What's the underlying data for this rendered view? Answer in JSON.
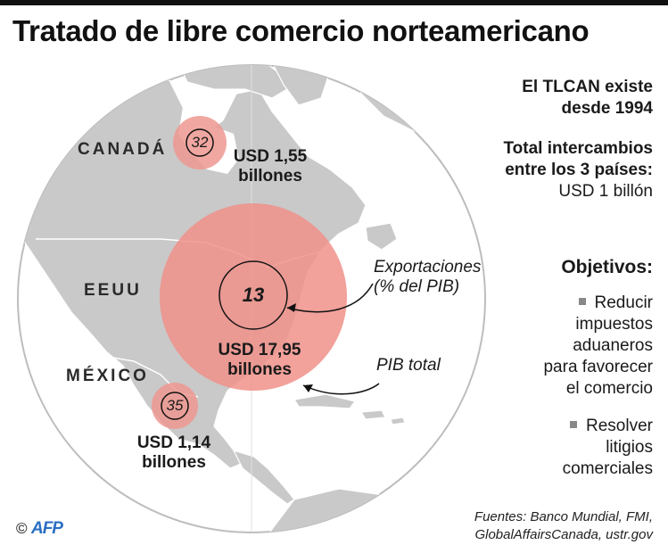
{
  "title": "Tratado de libre comercio norteamericano",
  "countries": {
    "canada": {
      "name": "CANADÁ",
      "export_pct": "32",
      "gdp_line1": "USD 1,55",
      "gdp_line2": "billones"
    },
    "usa": {
      "name": "EEUU",
      "export_pct": "13",
      "gdp_line1": "USD 17,95",
      "gdp_line2": "billones"
    },
    "mexico": {
      "name": "MÉXICO",
      "export_pct": "35",
      "gdp_line1": "USD 1,14",
      "gdp_line2": "billones"
    }
  },
  "legend": {
    "exports_line1": "Exportaciones",
    "exports_line2": "(% del PIB)",
    "gdp": "PIB total"
  },
  "info": {
    "since_line1": "El TLCAN  existe",
    "since_line2": "desde 1994",
    "trade_line1": "Total intercambios",
    "trade_line2": "entre los 3 países:",
    "trade_value": "USD 1 billón"
  },
  "objectives": {
    "heading": "Objetivos:",
    "items": [
      [
        "Reducir",
        "impuestos",
        "aduaneros",
        "para favorecer",
        "el comercio"
      ],
      [
        "Resolver",
        "litigios",
        "comerciales"
      ]
    ]
  },
  "sources": {
    "line1": "Fuentes: Banco Mundial, FMI,",
    "line2": "GlobalAffairsCanada, ustr.gov"
  },
  "credit": {
    "copyright": "©",
    "agency": "AFP"
  },
  "colors": {
    "land": "#c9c9c9",
    "sea": "#ffffff",
    "bubble": "#f0918a",
    "bubble_small": "#ef9890",
    "globe_outline": "#bdbdbd"
  }
}
